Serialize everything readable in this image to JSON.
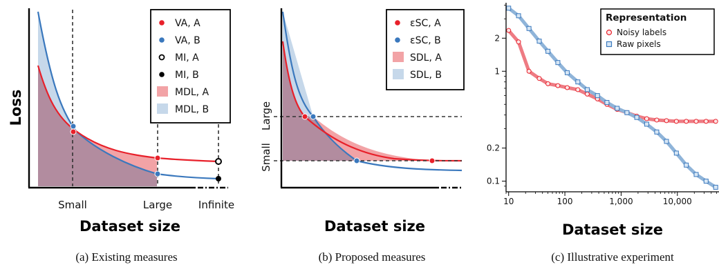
{
  "colors": {
    "red": "#e8202a",
    "blue": "#3a78bd",
    "red_fill": "#f2a3a6",
    "blue_fill": "#c6d8ea",
    "overlap_fill": "#b28c9f",
    "red_line": "#ee7b83",
    "blue_line": "#8fb4d9"
  },
  "panel_a": {
    "caption": "(a) Existing measures",
    "ylabel": "Loss",
    "xlabel": "Dataset size",
    "xticks": [
      "Small",
      "Large",
      "Infinite"
    ],
    "legend": [
      {
        "label": "VA, A",
        "marker": "red-dot"
      },
      {
        "label": "VA, B",
        "marker": "blue-dot"
      },
      {
        "label": "MI, A",
        "marker": "open-circle"
      },
      {
        "label": "MI, B",
        "marker": "black-dot"
      },
      {
        "label": "MDL, A",
        "marker": "red-swatch"
      },
      {
        "label": "MDL, B",
        "marker": "blue-swatch"
      }
    ]
  },
  "panel_b": {
    "caption": "(b) Proposed measures",
    "xlabel": "Dataset size",
    "yticks": [
      "Small",
      "Large"
    ],
    "legend": [
      {
        "label": "εSC, A",
        "marker": "red-dot"
      },
      {
        "label": "εSC, B",
        "marker": "blue-dot"
      },
      {
        "label": "SDL, A",
        "marker": "red-swatch"
      },
      {
        "label": "SDL, B",
        "marker": "blue-swatch"
      }
    ]
  },
  "panel_c": {
    "caption": "(c) Illustrative experiment",
    "xlabel": "Dataset size",
    "legend_title": "Representation",
    "xtick_labels": [
      "10",
      "100",
      "1,000",
      "10,000"
    ],
    "ytick_labels": [
      "0.1",
      "0.2",
      "1",
      "2"
    ]
  },
  "chart_data": {
    "type": "line",
    "log_x": true,
    "log_y": true,
    "xlim": [
      9,
      55000
    ],
    "ylim": [
      0.08,
      4.2
    ],
    "xticks": [
      10,
      100,
      1000,
      10000
    ],
    "yticks": [
      0.1,
      0.2,
      1,
      2
    ],
    "series": [
      {
        "name": "Noisy labels",
        "marker": "circle",
        "x": [
          10,
          15,
          23,
          35,
          50,
          75,
          110,
          170,
          250,
          380,
          560,
          850,
          1270,
          1900,
          2850,
          4300,
          6400,
          9600,
          14400,
          21600,
          32400,
          48000
        ],
        "y": [
          2.35,
          1.85,
          1.0,
          0.86,
          0.77,
          0.74,
          0.71,
          0.68,
          0.62,
          0.56,
          0.5,
          0.45,
          0.42,
          0.39,
          0.37,
          0.36,
          0.355,
          0.35,
          0.35,
          0.35,
          0.35,
          0.35
        ]
      },
      {
        "name": "Raw pixels",
        "marker": "square",
        "x": [
          10,
          15,
          23,
          35,
          50,
          75,
          110,
          170,
          250,
          380,
          560,
          850,
          1270,
          1900,
          2850,
          4300,
          6400,
          9600,
          14400,
          21600,
          32400,
          48000
        ],
        "y": [
          3.75,
          3.2,
          2.45,
          1.88,
          1.52,
          1.2,
          0.97,
          0.8,
          0.68,
          0.6,
          0.52,
          0.46,
          0.42,
          0.38,
          0.33,
          0.28,
          0.23,
          0.18,
          0.14,
          0.115,
          0.1,
          0.088
        ]
      }
    ]
  }
}
